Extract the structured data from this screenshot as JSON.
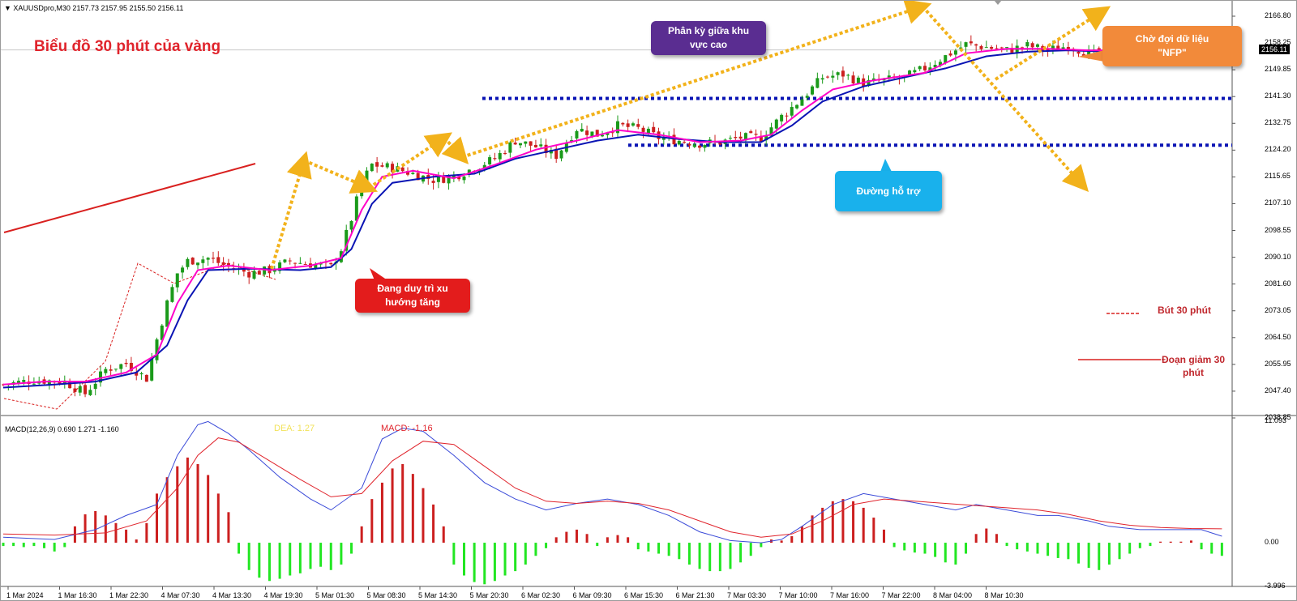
{
  "header": {
    "symbol_text": "▼ XAUUSDpro,M30  2157.73 2157.95 2155.50 2156.11",
    "title": "Biểu đồ 30 phút của vàng"
  },
  "callouts": {
    "divergence": "Phân kỳ giữa khu\nvực cao",
    "nfp": "Chờ đợi dữ liệu\n\"NFP\"",
    "support": "Đường hỗ trợ",
    "uptrend": "Đang duy trì xu\nhướng tăng"
  },
  "legend": {
    "dashed_label": "Bút 30 phút",
    "solid_label": "Đoạn giảm 30\nphút"
  },
  "colors": {
    "candle_up": "#1a9a1a",
    "candle_down": "#cc1f1f",
    "ma_fast": "#ff00c8",
    "ma_slow": "#0a14b4",
    "support_dots": "#0a14b4",
    "arrow": "#f2b21b",
    "trendline": "#d9201f",
    "hist_pos": "#cc1f1f",
    "hist_neg": "#22e622",
    "dif_line": "#3a4ad8",
    "dea_line": "#e0242c",
    "divergence_box": "#5a2d91",
    "nfp_box": "#f28a3a",
    "support_box": "#19b1ec",
    "uptrend_box": "#e31c1c"
  },
  "chart_data": [
    {
      "type": "line",
      "name": "price",
      "last_price": "2156.11",
      "ylim": [
        2035,
        2170
      ],
      "y_ticks": [
        "2166.80",
        "2158.25",
        "2149.85",
        "2141.30",
        "2132.75",
        "2124.20",
        "2115.65",
        "2107.10",
        "2098.55",
        "2090.10",
        "2081.60",
        "2073.05",
        "2064.50",
        "2055.95",
        "2047.40",
        "2038.85"
      ],
      "x_ticks": [
        "1 Mar 2024",
        "1 Mar 16:30",
        "1 Mar 22:30",
        "4 Mar 07:30",
        "4 Mar 13:30",
        "4 Mar 19:30",
        "5 Mar 01:30",
        "5 Mar 08:30",
        "5 Mar 14:30",
        "5 Mar 20:30",
        "6 Mar 02:30",
        "6 Mar 09:30",
        "6 Mar 15:30",
        "6 Mar 21:30",
        "7 Mar 03:30",
        "7 Mar 10:00",
        "7 Mar 16:00",
        "7 Mar 22:00",
        "8 Mar 04:00",
        "8 Mar 10:30"
      ],
      "close_path": [
        [
          0,
          2045
        ],
        [
          6,
          2046.5
        ],
        [
          12,
          2046
        ],
        [
          16,
          2042
        ],
        [
          20,
          2050
        ],
        [
          24,
          2052
        ],
        [
          28,
          2047
        ],
        [
          30,
          2060
        ],
        [
          32,
          2072
        ],
        [
          34,
          2082
        ],
        [
          36,
          2086
        ],
        [
          40,
          2087
        ],
        [
          44,
          2084
        ],
        [
          48,
          2082
        ],
        [
          52,
          2083
        ],
        [
          56,
          2086
        ],
        [
          60,
          2085
        ],
        [
          64,
          2084
        ],
        [
          66,
          2090
        ],
        [
          68,
          2100
        ],
        [
          70,
          2112
        ],
        [
          72,
          2118
        ],
        [
          76,
          2117
        ],
        [
          80,
          2115
        ],
        [
          84,
          2113
        ],
        [
          88,
          2114
        ],
        [
          92,
          2117
        ],
        [
          96,
          2120
        ],
        [
          100,
          2126
        ],
        [
          104,
          2124
        ],
        [
          108,
          2121
        ],
        [
          112,
          2130
        ],
        [
          116,
          2128
        ],
        [
          120,
          2131
        ],
        [
          124,
          2130
        ],
        [
          128,
          2127
        ],
        [
          132,
          2126
        ],
        [
          136,
          2125
        ],
        [
          140,
          2125.5
        ],
        [
          144,
          2127
        ],
        [
          148,
          2127
        ],
        [
          152,
          2134
        ],
        [
          156,
          2140
        ],
        [
          160,
          2147
        ],
        [
          164,
          2148
        ],
        [
          168,
          2145
        ],
        [
          172,
          2146
        ],
        [
          176,
          2147
        ],
        [
          180,
          2150
        ],
        [
          184,
          2154
        ],
        [
          188,
          2158
        ],
        [
          192,
          2157
        ],
        [
          196,
          2156
        ],
        [
          200,
          2157.5
        ],
        [
          204,
          2156
        ],
        [
          208,
          2157.5
        ],
        [
          212,
          2155
        ],
        [
          216,
          2154
        ],
        [
          220,
          2157
        ],
        [
          224,
          2158.5
        ],
        [
          228,
          2159
        ],
        [
          232,
          2160
        ],
        [
          236,
          2158.5
        ],
        [
          238,
          2156.1
        ]
      ],
      "ma_fast": [
        [
          0,
          2045
        ],
        [
          8,
          2046
        ],
        [
          16,
          2046
        ],
        [
          24,
          2049
        ],
        [
          30,
          2055
        ],
        [
          34,
          2072
        ],
        [
          38,
          2083
        ],
        [
          44,
          2084.5
        ],
        [
          52,
          2083
        ],
        [
          60,
          2084.5
        ],
        [
          66,
          2087
        ],
        [
          70,
          2103
        ],
        [
          74,
          2114
        ],
        [
          80,
          2116
        ],
        [
          88,
          2113.5
        ],
        [
          96,
          2118
        ],
        [
          104,
          2123
        ],
        [
          112,
          2126
        ],
        [
          120,
          2129.5
        ],
        [
          128,
          2128
        ],
        [
          136,
          2125.5
        ],
        [
          144,
          2126
        ],
        [
          150,
          2128
        ],
        [
          156,
          2136
        ],
        [
          162,
          2143
        ],
        [
          170,
          2146
        ],
        [
          180,
          2148.5
        ],
        [
          188,
          2155
        ],
        [
          196,
          2156.5
        ],
        [
          204,
          2156.5
        ],
        [
          212,
          2156
        ],
        [
          220,
          2156
        ],
        [
          228,
          2158
        ],
        [
          234,
          2159.5
        ],
        [
          238,
          2158
        ]
      ],
      "ma_slow": [
        [
          0,
          2044
        ],
        [
          10,
          2045
        ],
        [
          18,
          2046
        ],
        [
          26,
          2049
        ],
        [
          32,
          2058
        ],
        [
          36,
          2073
        ],
        [
          40,
          2083
        ],
        [
          48,
          2083.5
        ],
        [
          58,
          2083
        ],
        [
          64,
          2084
        ],
        [
          68,
          2090
        ],
        [
          72,
          2105
        ],
        [
          76,
          2112
        ],
        [
          84,
          2114
        ],
        [
          92,
          2115
        ],
        [
          100,
          2120
        ],
        [
          108,
          2123
        ],
        [
          116,
          2126
        ],
        [
          124,
          2128
        ],
        [
          132,
          2126.5
        ],
        [
          140,
          2125.5
        ],
        [
          148,
          2125.5
        ],
        [
          154,
          2131
        ],
        [
          160,
          2139
        ],
        [
          168,
          2144
        ],
        [
          176,
          2147
        ],
        [
          184,
          2150
        ],
        [
          192,
          2154
        ],
        [
          200,
          2155.5
        ],
        [
          208,
          2156
        ],
        [
          216,
          2155.5
        ],
        [
          224,
          2156.5
        ],
        [
          232,
          2158
        ],
        [
          238,
          2158
        ]
      ],
      "support_levels": [
        2140,
        2124.5
      ],
      "crosshair_level": 2156.11
    },
    {
      "type": "bar",
      "name": "MACD",
      "params": "MACD(12,26,9) 0.690 1.271 -1.160",
      "dea_label": "DEA: 1.27",
      "macd_label": "MACD: -1.16",
      "ylim": [
        -4,
        11.5
      ],
      "y_ticks": [
        "11.093",
        "0.00",
        "-3.996"
      ],
      "dif": [
        [
          0,
          0.5
        ],
        [
          10,
          0.3
        ],
        [
          18,
          1.2
        ],
        [
          24,
          2.5
        ],
        [
          30,
          3.5
        ],
        [
          34,
          8
        ],
        [
          38,
          10.8
        ],
        [
          40,
          11.1
        ],
        [
          44,
          10
        ],
        [
          48,
          8.5
        ],
        [
          54,
          6
        ],
        [
          60,
          4
        ],
        [
          64,
          3
        ],
        [
          70,
          5
        ],
        [
          74,
          9.5
        ],
        [
          78,
          10.5
        ],
        [
          82,
          10.2
        ],
        [
          88,
          8
        ],
        [
          94,
          5.5
        ],
        [
          100,
          4
        ],
        [
          106,
          3
        ],
        [
          112,
          3.6
        ],
        [
          118,
          4
        ],
        [
          124,
          3.5
        ],
        [
          130,
          2.5
        ],
        [
          136,
          1
        ],
        [
          142,
          0.2
        ],
        [
          148,
          0
        ],
        [
          152,
          0.3
        ],
        [
          156,
          1.5
        ],
        [
          162,
          3.5
        ],
        [
          168,
          4.5
        ],
        [
          174,
          4
        ],
        [
          180,
          3.5
        ],
        [
          186,
          3
        ],
        [
          190,
          3.5
        ],
        [
          196,
          3
        ],
        [
          202,
          2.5
        ],
        [
          206,
          2.5
        ],
        [
          212,
          2
        ],
        [
          216,
          1.5
        ],
        [
          222,
          1.2
        ],
        [
          228,
          1.2
        ],
        [
          234,
          1.2
        ],
        [
          238,
          0.6
        ]
      ],
      "dea": [
        [
          0,
          0.8
        ],
        [
          10,
          0.7
        ],
        [
          20,
          0.9
        ],
        [
          28,
          2
        ],
        [
          34,
          5
        ],
        [
          38,
          8
        ],
        [
          42,
          9.6
        ],
        [
          46,
          9.2
        ],
        [
          52,
          7.5
        ],
        [
          58,
          5.8
        ],
        [
          64,
          4.2
        ],
        [
          70,
          4.5
        ],
        [
          76,
          7.5
        ],
        [
          82,
          9.3
        ],
        [
          88,
          9
        ],
        [
          94,
          7
        ],
        [
          100,
          5
        ],
        [
          106,
          3.8
        ],
        [
          112,
          3.6
        ],
        [
          118,
          3.8
        ],
        [
          124,
          3.6
        ],
        [
          130,
          3
        ],
        [
          136,
          2
        ],
        [
          142,
          1
        ],
        [
          148,
          0.5
        ],
        [
          154,
          0.8
        ],
        [
          160,
          2
        ],
        [
          166,
          3.5
        ],
        [
          172,
          4
        ],
        [
          178,
          3.8
        ],
        [
          184,
          3.6
        ],
        [
          190,
          3.4
        ],
        [
          196,
          3.2
        ],
        [
          202,
          3
        ],
        [
          208,
          2.6
        ],
        [
          214,
          2
        ],
        [
          220,
          1.6
        ],
        [
          226,
          1.4
        ],
        [
          232,
          1.3
        ],
        [
          238,
          1.27
        ]
      ],
      "histogram": [
        [
          0,
          -0.3
        ],
        [
          2,
          -0.3
        ],
        [
          4,
          -0.4
        ],
        [
          6,
          -0.3
        ],
        [
          8,
          -0.5
        ],
        [
          10,
          -0.8
        ],
        [
          12,
          -0.4
        ],
        [
          14,
          1.5
        ],
        [
          16,
          2.6
        ],
        [
          18,
          2.9
        ],
        [
          20,
          2.5
        ],
        [
          22,
          1.8
        ],
        [
          24,
          1.2
        ],
        [
          26,
          0.3
        ],
        [
          28,
          1.8
        ],
        [
          30,
          4.5
        ],
        [
          32,
          6
        ],
        [
          34,
          7
        ],
        [
          36,
          7.8
        ],
        [
          38,
          7.2
        ],
        [
          40,
          6.2
        ],
        [
          42,
          4.5
        ],
        [
          44,
          2.8
        ],
        [
          46,
          -1
        ],
        [
          48,
          -2.5
        ],
        [
          50,
          -3.2
        ],
        [
          52,
          -3.5
        ],
        [
          54,
          -3.3
        ],
        [
          56,
          -3
        ],
        [
          58,
          -2.8
        ],
        [
          60,
          -2.4
        ],
        [
          62,
          -2.2
        ],
        [
          64,
          -2.5
        ],
        [
          66,
          -2
        ],
        [
          68,
          -1
        ],
        [
          70,
          1.5
        ],
        [
          72,
          4
        ],
        [
          74,
          5.5
        ],
        [
          76,
          6.8
        ],
        [
          78,
          7.2
        ],
        [
          80,
          6.3
        ],
        [
          82,
          5
        ],
        [
          84,
          3.5
        ],
        [
          86,
          1.5
        ],
        [
          88,
          -2
        ],
        [
          90,
          -3
        ],
        [
          92,
          -3.6
        ],
        [
          94,
          -3.8
        ],
        [
          96,
          -3.5
        ],
        [
          98,
          -3
        ],
        [
          100,
          -2.6
        ],
        [
          102,
          -2
        ],
        [
          104,
          -1.2
        ],
        [
          106,
          -0.5
        ],
        [
          108,
          0.5
        ],
        [
          110,
          1
        ],
        [
          112,
          1.2
        ],
        [
          114,
          0.8
        ],
        [
          116,
          -0.3
        ],
        [
          118,
          0.5
        ],
        [
          120,
          0.7
        ],
        [
          122,
          0.5
        ],
        [
          124,
          -0.6
        ],
        [
          126,
          -0.8
        ],
        [
          128,
          -1
        ],
        [
          130,
          -1.2
        ],
        [
          132,
          -1.5
        ],
        [
          134,
          -2
        ],
        [
          136,
          -2.4
        ],
        [
          138,
          -2.6
        ],
        [
          140,
          -2.6
        ],
        [
          142,
          -2.4
        ],
        [
          144,
          -1.8
        ],
        [
          146,
          -1.2
        ],
        [
          148,
          -0.4
        ],
        [
          150,
          0.3
        ],
        [
          152,
          0.2
        ],
        [
          154,
          0.6
        ],
        [
          156,
          1.5
        ],
        [
          158,
          2.5
        ],
        [
          160,
          3.2
        ],
        [
          162,
          3.8
        ],
        [
          164,
          4
        ],
        [
          166,
          3.8
        ],
        [
          168,
          3.2
        ],
        [
          170,
          2.3
        ],
        [
          172,
          1.2
        ],
        [
          174,
          -0.4
        ],
        [
          176,
          -0.7
        ],
        [
          178,
          -0.9
        ],
        [
          180,
          -1
        ],
        [
          182,
          -1.3
        ],
        [
          184,
          -1.8
        ],
        [
          186,
          -2
        ],
        [
          188,
          -1
        ],
        [
          190,
          0.8
        ],
        [
          192,
          1.3
        ],
        [
          194,
          0.8
        ],
        [
          196,
          -0.3
        ],
        [
          198,
          -0.6
        ],
        [
          200,
          -0.8
        ],
        [
          202,
          -1
        ],
        [
          204,
          -1.2
        ],
        [
          206,
          -1.4
        ],
        [
          208,
          -1.5
        ],
        [
          210,
          -1.9
        ],
        [
          212,
          -2.3
        ],
        [
          214,
          -2.5
        ],
        [
          216,
          -2
        ],
        [
          218,
          -1.5
        ],
        [
          220,
          -1
        ],
        [
          222,
          -0.5
        ],
        [
          224,
          -0.3
        ],
        [
          226,
          0.1
        ],
        [
          228,
          0.1
        ],
        [
          230,
          0.1
        ],
        [
          232,
          0.2
        ],
        [
          234,
          -0.6
        ],
        [
          236,
          -1
        ],
        [
          238,
          -1.2
        ]
      ]
    }
  ]
}
